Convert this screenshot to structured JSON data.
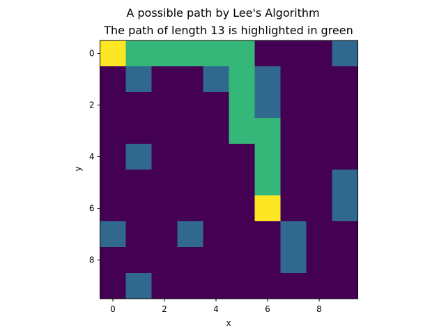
{
  "chart_data": {
    "type": "heatmap",
    "title": "A possible path by Lee's Algorithm",
    "subtitle": "The path of length 13 is highlighted in green",
    "xlabel": "x",
    "ylabel": "y",
    "x_ticks": [
      0,
      2,
      4,
      6,
      8
    ],
    "y_ticks": [
      0,
      2,
      4,
      6,
      8
    ],
    "xlim": [
      -0.5,
      9.5
    ],
    "ylim": [
      9.5,
      -0.5
    ],
    "colors": {
      "0": "#440154",
      "1": "#31688e",
      "2": "#35b779",
      "3": "#fde725"
    },
    "grid": [
      [
        3,
        2,
        2,
        2,
        2,
        2,
        0,
        0,
        0,
        1
      ],
      [
        0,
        1,
        0,
        0,
        1,
        2,
        1,
        0,
        0,
        0
      ],
      [
        0,
        0,
        0,
        0,
        0,
        2,
        1,
        0,
        0,
        0
      ],
      [
        0,
        0,
        0,
        0,
        0,
        2,
        2,
        0,
        0,
        0
      ],
      [
        0,
        1,
        0,
        0,
        0,
        0,
        2,
        0,
        0,
        0
      ],
      [
        0,
        0,
        0,
        0,
        0,
        0,
        2,
        0,
        0,
        1
      ],
      [
        0,
        0,
        0,
        0,
        0,
        0,
        3,
        0,
        0,
        1
      ],
      [
        1,
        0,
        0,
        1,
        0,
        0,
        0,
        1,
        0,
        0
      ],
      [
        0,
        0,
        0,
        0,
        0,
        0,
        0,
        1,
        0,
        0
      ],
      [
        0,
        1,
        0,
        0,
        0,
        0,
        0,
        0,
        0,
        0
      ]
    ]
  }
}
